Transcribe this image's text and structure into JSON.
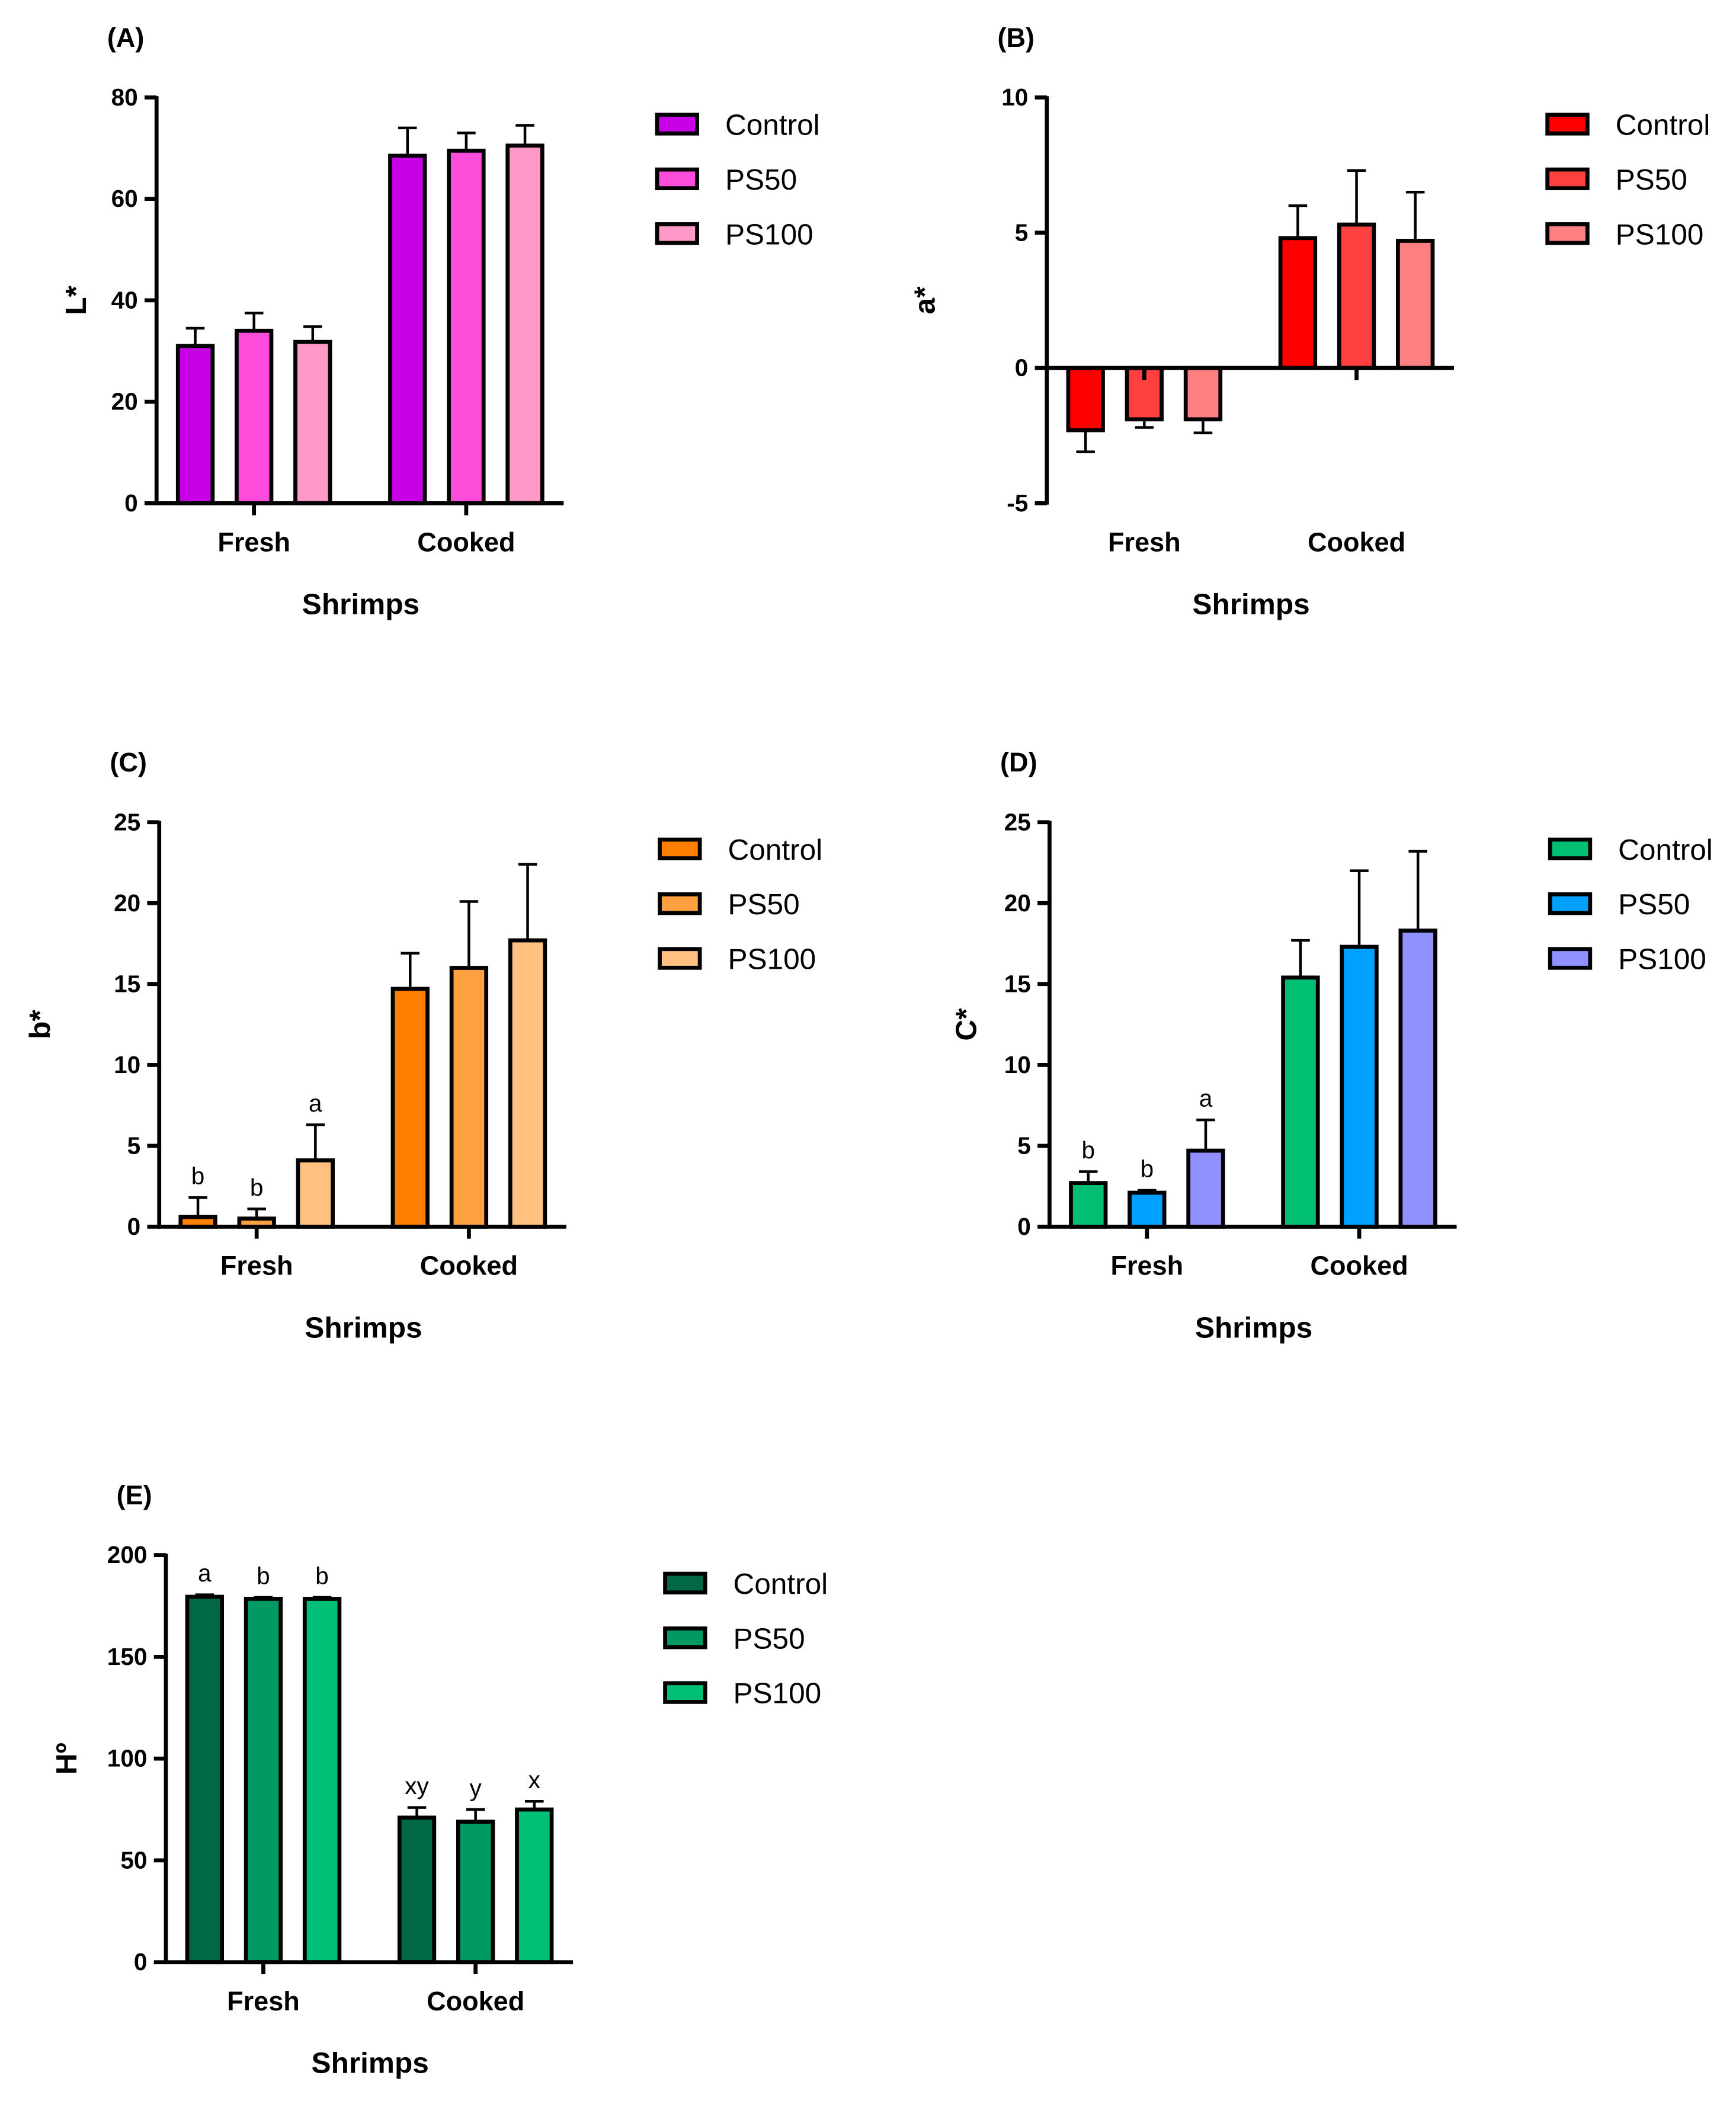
{
  "chart_data": [
    {
      "type": "bar",
      "panel": "(A)",
      "ylabel": "L*",
      "xlabel": "Shrimps",
      "categories": [
        "Fresh",
        "Cooked"
      ],
      "ylim": [
        0,
        80
      ],
      "yticks": [
        0,
        20,
        40,
        60,
        80
      ],
      "series": [
        {
          "name": "Control",
          "color": "#c800e6",
          "values": [
            31,
            68.5
          ],
          "err": [
            3.5,
            5.5
          ],
          "letters": [
            "",
            ""
          ]
        },
        {
          "name": "PS50",
          "color": "#ff4ddb",
          "values": [
            34,
            69.5
          ],
          "err": [
            3.5,
            3.5
          ],
          "letters": [
            "",
            ""
          ]
        },
        {
          "name": "PS100",
          "color": "#ff99c8",
          "values": [
            31.8,
            70.5
          ],
          "err": [
            3,
            4
          ],
          "letters": [
            "",
            ""
          ]
        }
      ]
    },
    {
      "type": "bar",
      "panel": "(B)",
      "ylabel": "a*",
      "xlabel": "Shrimps",
      "categories": [
        "Fresh",
        "Cooked"
      ],
      "ylim": [
        -5,
        10
      ],
      "yticks": [
        -5,
        0,
        5,
        10
      ],
      "series": [
        {
          "name": "Control",
          "color": "#ff0000",
          "values": [
            -2.3,
            4.8
          ],
          "err": [
            0.8,
            1.2
          ],
          "letters": [
            "",
            ""
          ]
        },
        {
          "name": "PS50",
          "color": "#ff4040",
          "values": [
            -1.9,
            5.3
          ],
          "err": [
            0.3,
            2.0
          ],
          "letters": [
            "",
            ""
          ]
        },
        {
          "name": "PS100",
          "color": "#ff8080",
          "values": [
            -1.9,
            4.7
          ],
          "err": [
            0.5,
            1.8
          ],
          "letters": [
            "",
            ""
          ]
        }
      ]
    },
    {
      "type": "bar",
      "panel": "(C)",
      "ylabel": "b*",
      "xlabel": "Shrimps",
      "categories": [
        "Fresh",
        "Cooked"
      ],
      "ylim": [
        0,
        25
      ],
      "yticks": [
        0,
        5,
        10,
        15,
        20,
        25
      ],
      "series": [
        {
          "name": "Control",
          "color": "#ff8000",
          "values": [
            0.6,
            14.7
          ],
          "err": [
            1.2,
            2.2
          ],
          "letters": [
            "b",
            ""
          ]
        },
        {
          "name": "PS50",
          "color": "#ffa040",
          "values": [
            0.5,
            16.0
          ],
          "err": [
            0.6,
            4.1
          ],
          "letters": [
            "b",
            ""
          ]
        },
        {
          "name": "PS100",
          "color": "#ffc080",
          "values": [
            4.1,
            17.7
          ],
          "err": [
            2.2,
            4.7
          ],
          "letters": [
            "a",
            ""
          ]
        }
      ]
    },
    {
      "type": "bar",
      "panel": "(D)",
      "ylabel": "C*",
      "xlabel": "Shrimps",
      "categories": [
        "Fresh",
        "Cooked"
      ],
      "ylim": [
        0,
        25
      ],
      "yticks": [
        0,
        5,
        10,
        15,
        20,
        25
      ],
      "series": [
        {
          "name": "Control",
          "color": "#00bf72",
          "values": [
            2.7,
            15.4
          ],
          "err": [
            0.7,
            2.3
          ],
          "letters": [
            "b",
            ""
          ]
        },
        {
          "name": "PS50",
          "color": "#00a0ff",
          "values": [
            2.1,
            17.3
          ],
          "err": [
            0.15,
            4.7
          ],
          "letters": [
            "b",
            ""
          ]
        },
        {
          "name": "PS100",
          "color": "#9090ff",
          "values": [
            4.7,
            18.3
          ],
          "err": [
            1.9,
            4.9
          ],
          "letters": [
            "a",
            ""
          ]
        }
      ]
    },
    {
      "type": "bar",
      "panel": "(E)",
      "ylabel": "Hº",
      "xlabel": "Shrimps",
      "categories": [
        "Fresh",
        "Cooked"
      ],
      "ylim": [
        0,
        200
      ],
      "yticks": [
        0,
        50,
        100,
        150,
        200
      ],
      "series": [
        {
          "name": "Control",
          "color": "#006844",
          "values": [
            179.5,
            71
          ],
          "err": [
            1,
            5
          ],
          "letters": [
            "a",
            "xy"
          ]
        },
        {
          "name": "PS50",
          "color": "#009a62",
          "values": [
            178.5,
            69
          ],
          "err": [
            0.7,
            6
          ],
          "letters": [
            "b",
            "y"
          ]
        },
        {
          "name": "PS100",
          "color": "#00c078",
          "values": [
            178.5,
            75
          ],
          "err": [
            0.7,
            4
          ],
          "letters": [
            "b",
            "x"
          ]
        }
      ]
    }
  ]
}
